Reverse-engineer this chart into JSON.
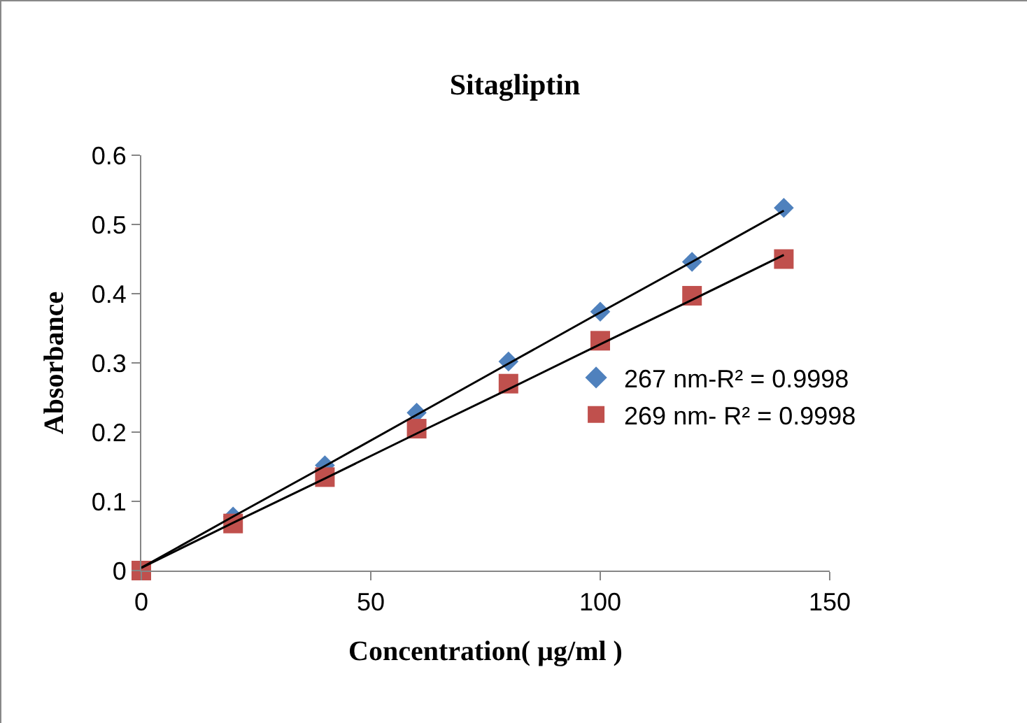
{
  "chart_data": {
    "type": "scatter",
    "title": "Sitagliptin",
    "xlabel": "Concentration( µg/ml )",
    "ylabel": "Absorbance",
    "x": [
      0,
      20,
      40,
      60,
      80,
      100,
      120,
      140
    ],
    "series": [
      {
        "name": "267 nm-R² = 0.9998",
        "color": "#4f81bd",
        "marker": "diamond",
        "values": [
          null,
          0.078,
          0.152,
          0.228,
          0.302,
          0.374,
          0.446,
          0.524
        ]
      },
      {
        "name": "269 nm- R² = 0.9998",
        "color": "#c0504d",
        "marker": "square",
        "values": [
          0,
          0.068,
          0.135,
          0.205,
          0.27,
          0.332,
          0.397,
          0.45
        ]
      },
      {
        "type": "line",
        "color": "#000000",
        "values": [
          0.004,
          0.078,
          0.151,
          0.225,
          0.299,
          0.373,
          0.446,
          0.52
        ]
      },
      {
        "type": "line",
        "color": "#000000",
        "values": [
          0.004,
          0.069,
          0.133,
          0.198,
          0.262,
          0.327,
          0.391,
          0.456
        ]
      }
    ],
    "xlim": [
      0,
      150
    ],
    "xticks": [
      0,
      50,
      100,
      150
    ],
    "ylim": [
      0,
      0.6
    ],
    "yticks": [
      0,
      0.1,
      0.2,
      0.3,
      0.4,
      0.5,
      0.6
    ],
    "grid": false,
    "legend": "right"
  }
}
